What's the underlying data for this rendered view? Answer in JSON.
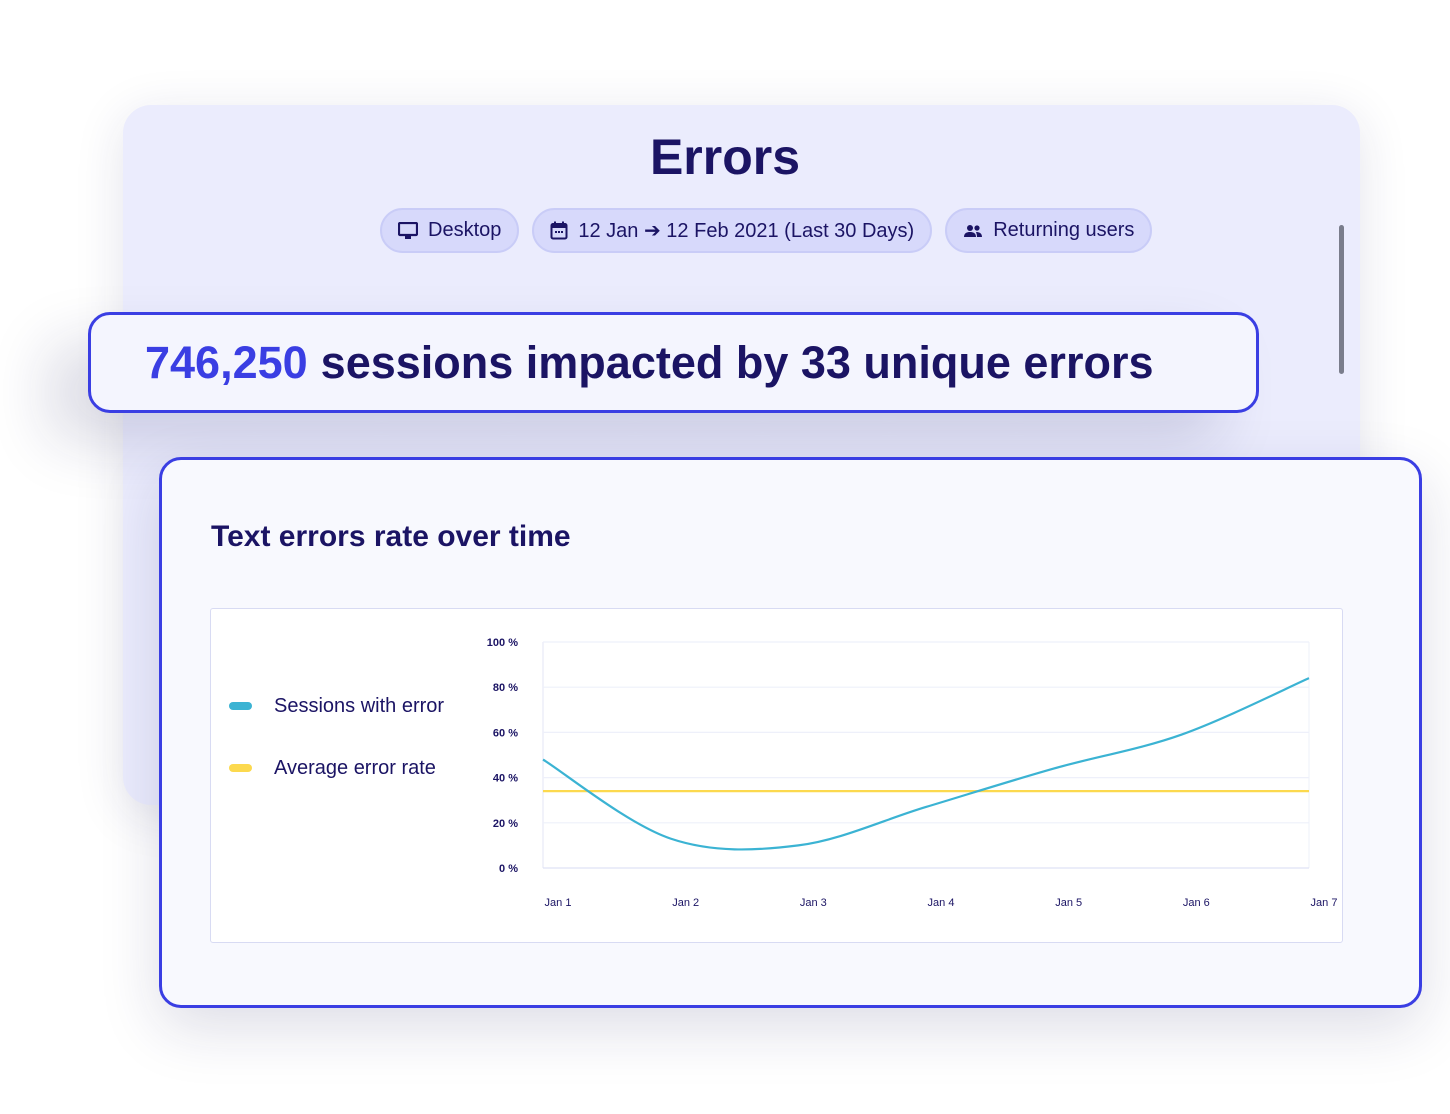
{
  "header": {
    "title": "Errors"
  },
  "filters": [
    {
      "icon": "desktop-icon",
      "label": "Desktop"
    },
    {
      "icon": "calendar-icon",
      "label": "12 Jan ➔ 12 Feb 2021 (Last 30 Days)"
    },
    {
      "icon": "users-icon",
      "label": "Returning users"
    }
  ],
  "summary": {
    "sessions": "746,250",
    "text": "sessions impacted by 33 unique errors"
  },
  "card": {
    "title": "Text errors rate over time"
  },
  "colors": {
    "accent": "#3a3ee3",
    "sessions": "#3bb3d3",
    "average": "#fcd94e",
    "text": "#1b1464"
  },
  "chart_data": {
    "type": "line",
    "categories": [
      "Jan 1",
      "Jan 2",
      "Jan 3",
      "Jan 4",
      "Jan 5",
      "Jan 6",
      "Jan 7"
    ],
    "yticks": [
      "0 %",
      "20 %",
      "40 %",
      "60 %",
      "80 %",
      "100 %"
    ],
    "ylim": [
      0,
      100
    ],
    "grid": true,
    "legend": "left",
    "series": [
      {
        "name": "Sessions with error",
        "values": [
          48,
          13,
          10,
          27,
          44,
          59,
          84
        ],
        "color": "#3bb3d3"
      },
      {
        "name": "Average error rate",
        "values": [
          34,
          34,
          34,
          34,
          34,
          34,
          34
        ],
        "color": "#fcd94e"
      }
    ]
  }
}
